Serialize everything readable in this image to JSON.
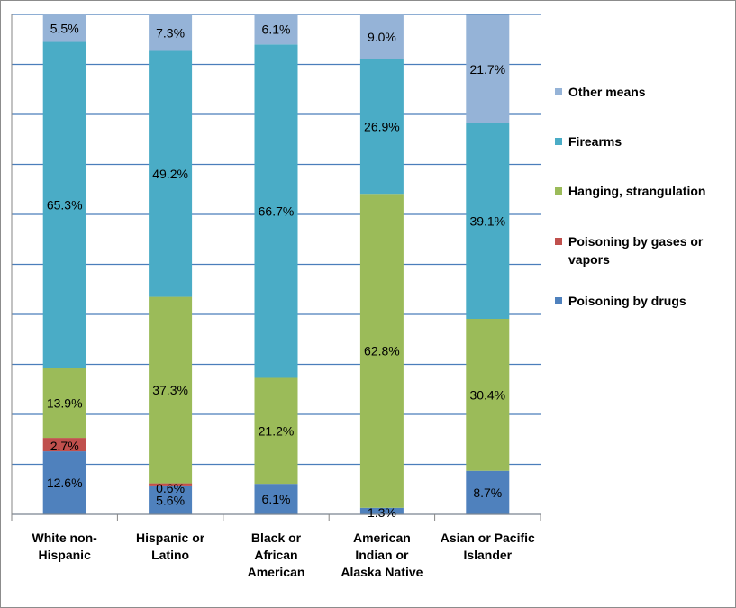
{
  "chart_data": {
    "type": "bar",
    "stacked": true,
    "percent_stacked": true,
    "categories": [
      "White non-Hispanic",
      "Hispanic or Latino",
      "Black or African American",
      "American Indian or Alaska Native",
      "Asian or Pacific Islander"
    ],
    "category_lines": [
      [
        "White non-",
        "Hispanic"
      ],
      [
        "Hispanic or",
        "Latino"
      ],
      [
        "Black or",
        "African",
        "American"
      ],
      [
        "American",
        "Indian or",
        "Alaska Native"
      ],
      [
        "Asian or Pacific",
        "Islander"
      ]
    ],
    "series": [
      {
        "name": "Poisoning by drugs",
        "color": "#4f81bd",
        "values": [
          12.6,
          5.6,
          6.1,
          1.3,
          8.7
        ],
        "labels": [
          "12.6%",
          "5.6%",
          "6.1%",
          "1.3%",
          "8.7%"
        ]
      },
      {
        "name": "Poisoning by gases or vapors",
        "color": "#c0504d",
        "values": [
          2.7,
          0.6,
          0,
          0,
          0
        ],
        "labels": [
          "2.7%",
          "0.6%",
          "",
          "",
          ""
        ]
      },
      {
        "name": "Hanging, strangulation",
        "color": "#9bbb59",
        "values": [
          13.9,
          37.3,
          21.2,
          62.8,
          30.4
        ],
        "labels": [
          "13.9%",
          "37.3%",
          "21.2%",
          "62.8%",
          "30.4%"
        ]
      },
      {
        "name": "Firearms",
        "color": "#4aacc6",
        "values": [
          65.3,
          49.2,
          66.7,
          26.9,
          39.1
        ],
        "labels": [
          "65.3%",
          "49.2%",
          "66.7%",
          "26.9%",
          "39.1%"
        ]
      },
      {
        "name": "Other means",
        "color": "#95b3d7",
        "values": [
          5.5,
          7.3,
          6.1,
          9.0,
          21.7
        ],
        "labels": [
          "5.5%",
          "7.3%",
          "6.1%",
          "9.0%",
          "21.7%"
        ]
      }
    ],
    "ylim": [
      0,
      100
    ],
    "grid": true,
    "legend_position": "right",
    "legend_order": [
      "Other means",
      "Firearms",
      "Hanging, strangulation",
      "Poisoning by gases or vapors",
      "Poisoning by drugs"
    ]
  }
}
